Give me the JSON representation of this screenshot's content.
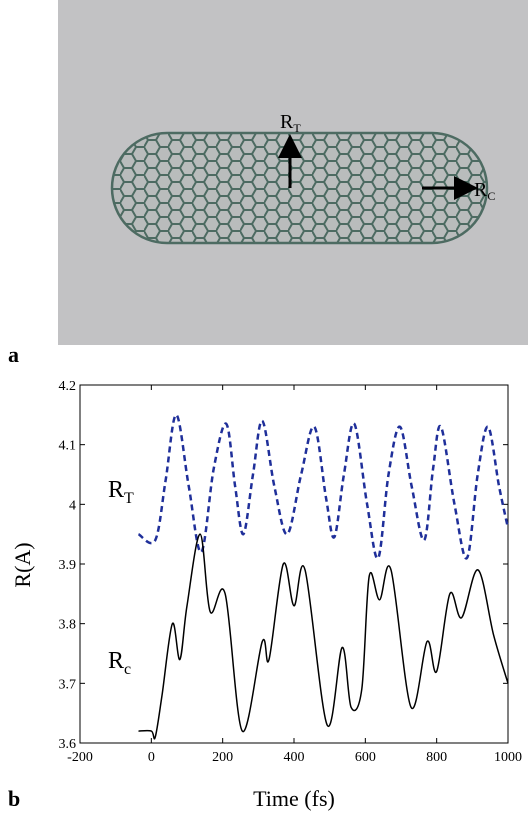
{
  "panel_a": {
    "label": "a",
    "annotations": [
      {
        "main": "R",
        "sub": "T"
      },
      {
        "main": "R",
        "sub": "C"
      }
    ]
  },
  "chart_data": {
    "type": "line",
    "panel_label": "b",
    "xlabel": "Time (fs)",
    "ylabel": "R(A)",
    "xlim": [
      -200,
      1000
    ],
    "ylim": [
      3.6,
      4.2
    ],
    "xticks": [
      -200,
      0,
      200,
      400,
      600,
      800,
      1000
    ],
    "yticks": [
      3.6,
      3.7,
      3.8,
      3.9,
      4,
      4.1,
      4.2
    ],
    "series": [
      {
        "name": "R",
        "name_sub": "T",
        "color": "#1f2f9a",
        "dashed": true,
        "x": [
          -36,
          11,
          40,
          70,
          105,
          140,
          175,
          210,
          235,
          258,
          285,
          311,
          345,
          381,
          420,
          457,
          490,
          513,
          540,
          569,
          605,
          636,
          665,
          697,
          730,
          765,
          790,
          812,
          850,
          885,
          915,
          944,
          975,
          1000
        ],
        "values": [
          3.95,
          3.94,
          4.04,
          4.15,
          4.03,
          3.92,
          4.06,
          4.135,
          4.03,
          3.95,
          4.05,
          4.14,
          4.03,
          3.95,
          4.05,
          4.13,
          4.01,
          3.945,
          4.05,
          4.135,
          4.0,
          3.91,
          4.05,
          4.13,
          4.03,
          3.94,
          4.06,
          4.13,
          4.0,
          3.91,
          4.05,
          4.13,
          4.03,
          3.96
        ]
      },
      {
        "name": "R",
        "name_sub": "c",
        "color": "#000000",
        "dashed": false,
        "x": [
          -36,
          0,
          11,
          30,
          59,
          80,
          100,
          137,
          165,
          207,
          255,
          311,
          330,
          370,
          400,
          431,
          493,
          535,
          560,
          590,
          611,
          640,
          672,
          728,
          773,
          800,
          837,
          870,
          916,
          960,
          1000
        ],
        "values": [
          3.62,
          3.62,
          3.61,
          3.68,
          3.8,
          3.74,
          3.83,
          3.95,
          3.82,
          3.85,
          3.62,
          3.77,
          3.74,
          3.9,
          3.83,
          3.89,
          3.63,
          3.76,
          3.66,
          3.69,
          3.88,
          3.84,
          3.89,
          3.66,
          3.77,
          3.72,
          3.85,
          3.81,
          3.89,
          3.78,
          3.7
        ]
      }
    ]
  }
}
